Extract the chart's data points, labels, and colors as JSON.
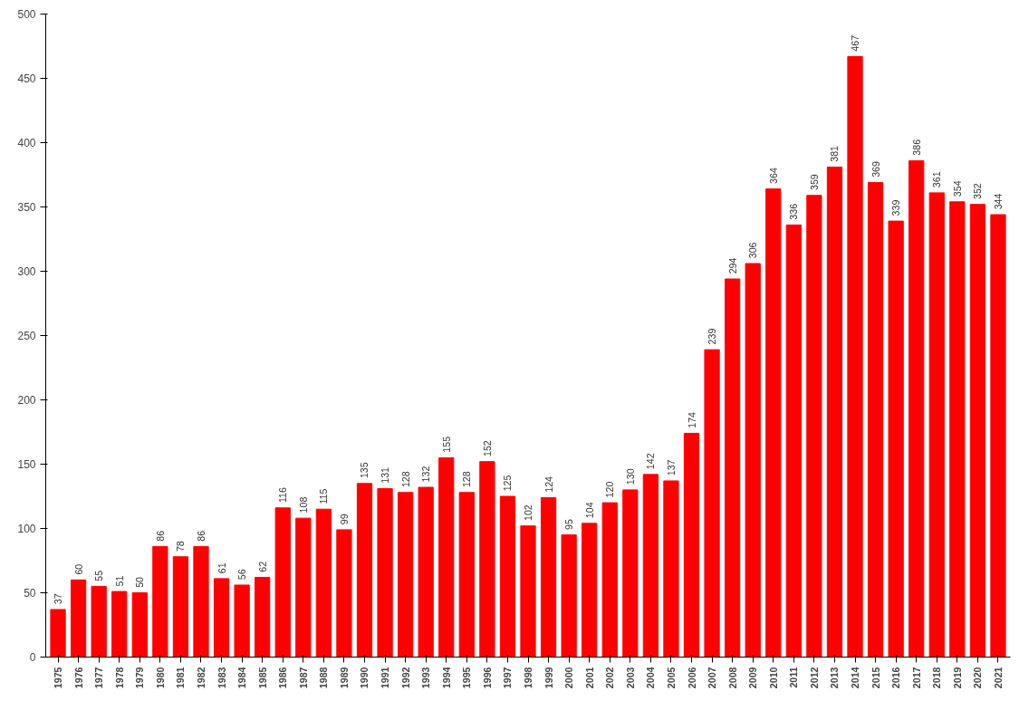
{
  "chart_data": {
    "type": "bar",
    "categories": [
      "1975",
      "1976",
      "1977",
      "1978",
      "1979",
      "1980",
      "1981",
      "1982",
      "1983",
      "1984",
      "1985",
      "1986",
      "1987",
      "1988",
      "1989",
      "1990",
      "1991",
      "1992",
      "1993",
      "1994",
      "1995",
      "1996",
      "1997",
      "1998",
      "1999",
      "2000",
      "2001",
      "2002",
      "2003",
      "2004",
      "2005",
      "2006",
      "2007",
      "2008",
      "2009",
      "2010",
      "2011",
      "2012",
      "2013",
      "2014",
      "2015",
      "2016",
      "2017",
      "2018",
      "2019",
      "2020",
      "2021"
    ],
    "values": [
      37,
      60,
      55,
      51,
      50,
      86,
      78,
      86,
      61,
      56,
      62,
      116,
      108,
      115,
      99,
      135,
      131,
      128,
      132,
      155,
      128,
      152,
      125,
      102,
      124,
      95,
      104,
      120,
      130,
      142,
      137,
      174,
      239,
      294,
      306,
      364,
      336,
      359,
      381,
      467,
      369,
      339,
      386,
      361,
      354,
      352,
      344
    ],
    "color": "#ff0000",
    "ylim": [
      0,
      500
    ],
    "yticks": [
      0,
      50,
      100,
      150,
      200,
      250,
      300,
      350,
      400,
      450,
      500
    ],
    "grid": false,
    "data_labels": true
  }
}
